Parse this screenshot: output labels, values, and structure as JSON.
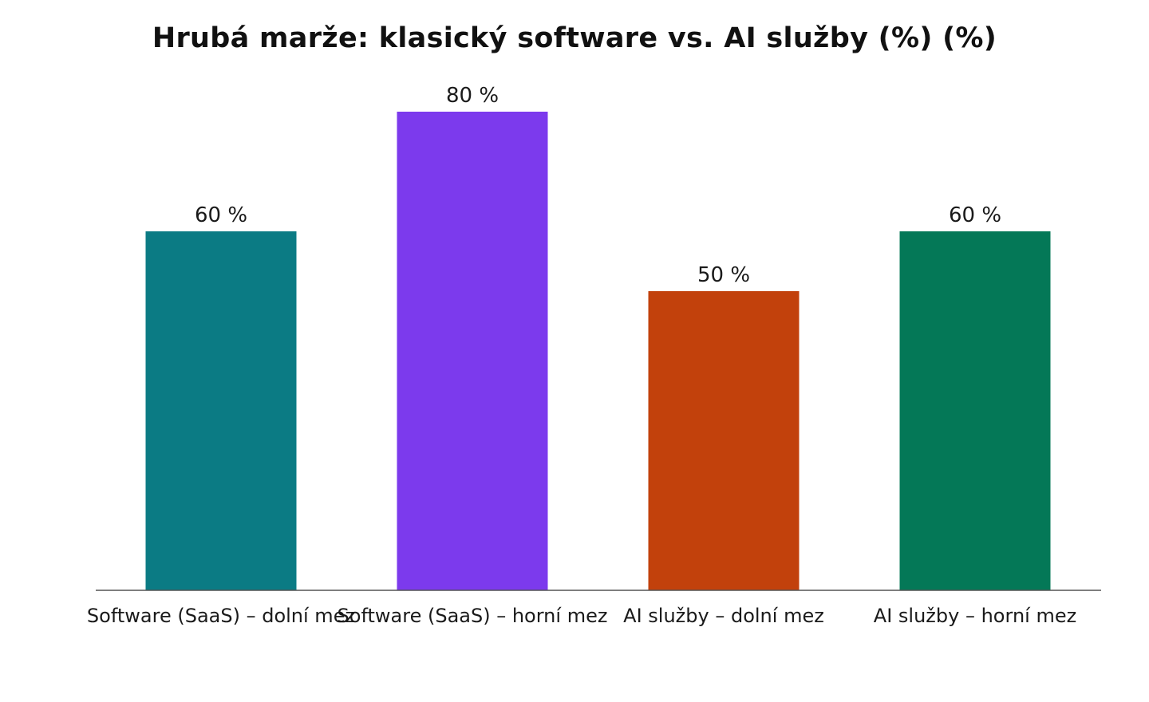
{
  "chart_data": {
    "type": "bar",
    "title": "Hrubá marže: klasický software vs. AI služby (%) (%)",
    "xlabel": "",
    "ylabel": "",
    "categories": [
      "Software (SaaS) – dolní mez",
      "Software (SaaS) – horní mez",
      "AI služby – dolní mez",
      "AI služby – horní mez"
    ],
    "values": [
      60,
      80,
      50,
      60
    ],
    "value_labels": [
      "60 %",
      "80 %",
      "50 %",
      "60 %"
    ],
    "colors": [
      "#0b7b84",
      "#7c3aed",
      "#c2410c",
      "#047857"
    ],
    "ylim": [
      0,
      80
    ],
    "grid": false,
    "legend": "none",
    "baseline_color": "#555555"
  }
}
